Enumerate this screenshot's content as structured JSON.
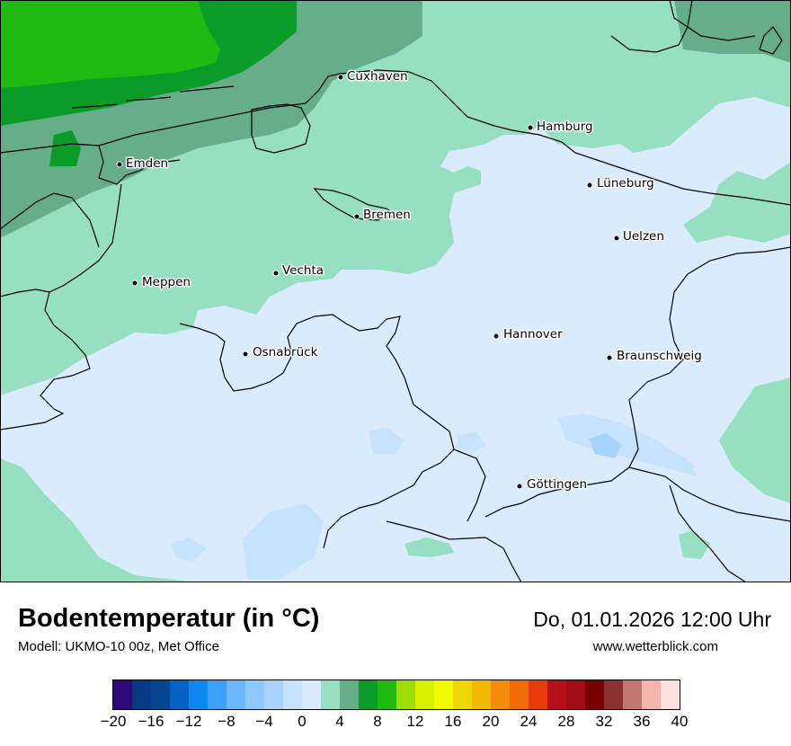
{
  "title": "Bodentemperatur (in °C)",
  "subtitle": "Modell: UKMO-10 00z, Met Office",
  "datetime": "Do, 01.01.2026 12:00 Uhr",
  "website": "www.wetterblick.com",
  "cities": [
    {
      "name": "Cuxhaven"
    },
    {
      "name": "Hamburg"
    },
    {
      "name": "Emden"
    },
    {
      "name": "Lüneburg"
    },
    {
      "name": "Bremen"
    },
    {
      "name": "Uelzen"
    },
    {
      "name": "Meppen"
    },
    {
      "name": "Vechta"
    },
    {
      "name": "Hannover"
    },
    {
      "name": "Osnabrück"
    },
    {
      "name": "Braunschweig"
    },
    {
      "name": "Göttingen"
    }
  ],
  "legend": {
    "colors": [
      "#2e0a78",
      "#053a82",
      "#04468f",
      "#0461c3",
      "#0e86f0",
      "#3ca0fb",
      "#6cb8fc",
      "#8ec8fc",
      "#a7d3fc",
      "#c5e3fc",
      "#daebfd",
      "#96dfc0",
      "#66ae8a",
      "#0b9b28",
      "#21ba12",
      "#9fdb07",
      "#d3f100",
      "#f1fa00",
      "#f1d605",
      "#f2b802",
      "#f28c0a",
      "#f06a08",
      "#e93a0b",
      "#b8101a",
      "#a10c16",
      "#780002",
      "#8b3032",
      "#c27672",
      "#f5b4ae",
      "#fde1e0"
    ],
    "ticks": [
      "−20",
      "−16",
      "−12",
      "−8",
      "−4",
      "0",
      "4",
      "8",
      "12",
      "16",
      "20",
      "24",
      "28",
      "32",
      "36",
      "40"
    ]
  }
}
